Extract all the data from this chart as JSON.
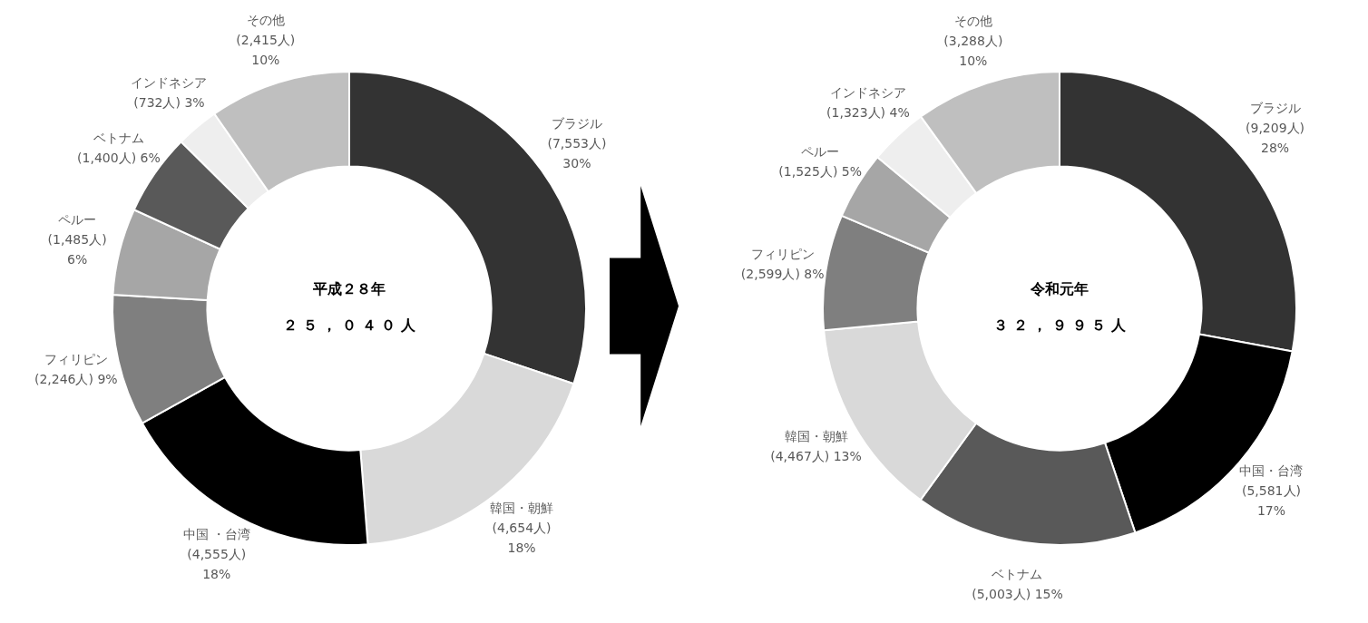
{
  "chart_data": [
    {
      "type": "donut",
      "title": "平成２８年",
      "subtitle": "２５，０４０人",
      "categories": [
        "ブラジル",
        "韓国・朝鮮",
        "中国 ・台湾",
        "フィリピン",
        "ペルー",
        "ベトナム",
        "インドネシア",
        "その他"
      ],
      "values": [
        7553,
        4654,
        4555,
        2246,
        1485,
        1400,
        732,
        2415
      ],
      "colors": [
        "#333333",
        "#d9d9d9",
        "#000000",
        "#7f7f7f",
        "#a6a6a6",
        "#595959",
        "#eeeeee",
        "#bfbfbf"
      ],
      "value_labels": [
        "(7,553人)\n30%",
        "(4,654人)\n18%",
        "(4,555人)\n18%",
        "(2,246人) 9%",
        "(1,485人)\n6%",
        "(1,400人) 6%",
        "(732人) 3%",
        "(2,415人)\n10%"
      ]
    },
    {
      "type": "donut",
      "title": "令和元年",
      "subtitle": "３２，９９５人",
      "categories": [
        "ブラジル",
        "中国・台湾",
        "ベトナム",
        "韓国・朝鮮",
        "フィリピン",
        "ペルー",
        "インドネシア",
        "その他"
      ],
      "values": [
        9209,
        5581,
        5003,
        4467,
        2599,
        1525,
        1323,
        3288
      ],
      "colors": [
        "#333333",
        "#000000",
        "#595959",
        "#d9d9d9",
        "#7f7f7f",
        "#a6a6a6",
        "#eeeeee",
        "#bfbfbf"
      ],
      "value_labels": [
        "(9,209人)\n28%",
        "(5,581人)\n17%",
        "(5,003人) 15%",
        "(4,467人) 13%",
        "(2,599人) 8%",
        "(1,525人) 5%",
        "(1,323人) 4%",
        "(3,288人)\n10%"
      ]
    }
  ]
}
